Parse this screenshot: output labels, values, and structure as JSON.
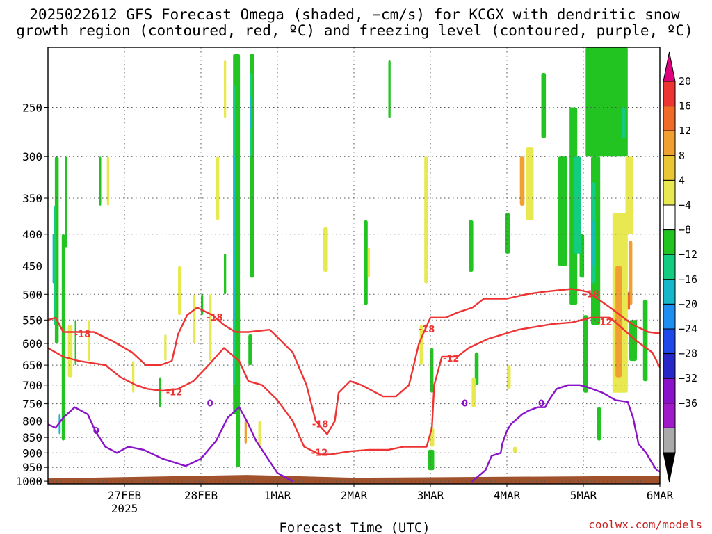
{
  "title": {
    "line1": "2025022612 GFS Forecast Omega (shaded, −cm/s) for KCGX with dendritic snow",
    "line2": "growth region (contoured, red, ºC) and freezing level (contoured, purple, ºC)"
  },
  "credit": "coolwx.com/models",
  "colors": {
    "dgz_contour": "#ee3333",
    "freezing_contour": "#8a12c8",
    "ground": "#a0522d",
    "grid": "#555555"
  },
  "chart_data": {
    "type": "heatmap",
    "title": "2025022612 GFS Forecast Omega (shaded, −cm/s) for KCGX with dendritic snow growth region (contoured, red, ºC) and freezing level (contoured, purple, ºC)",
    "xlabel": "Forecast Time (UTC)",
    "ylabel": "",
    "x_ticks": [
      {
        "day": 1.0,
        "label": "27FEB",
        "sublabel": "2025"
      },
      {
        "day": 2.0,
        "label": "28FEB",
        "sublabel": ""
      },
      {
        "day": 3.0,
        "label": "1MAR",
        "sublabel": ""
      },
      {
        "day": 4.0,
        "label": "2MAR",
        "sublabel": ""
      },
      {
        "day": 5.0,
        "label": "3MAR",
        "sublabel": ""
      },
      {
        "day": 6.0,
        "label": "4MAR",
        "sublabel": ""
      },
      {
        "day": 7.0,
        "label": "5MAR",
        "sublabel": ""
      },
      {
        "day": 8.0,
        "label": "6MAR",
        "sublabel": ""
      }
    ],
    "xlim_days": [
      0.0,
      8.0
    ],
    "pressure_ticks": [
      250,
      300,
      350,
      400,
      450,
      500,
      550,
      600,
      650,
      700,
      750,
      800,
      850,
      900,
      950,
      1000
    ],
    "ylim_hPa": [
      1010,
      200
    ],
    "y_scale": "log-pressure",
    "grid": true,
    "colorbar": {
      "levels": [
        "20",
        "16",
        "12",
        "8",
        "4",
        "−4",
        "−8",
        "−12",
        "−16",
        "−20",
        "−24",
        "−28",
        "−32",
        "−36"
      ],
      "colors": [
        "#e0007e",
        "#ee3333",
        "#f06a28",
        "#f0a030",
        "#e8c634",
        "#e8e850",
        "#ffffff",
        "#22c422",
        "#14cc80",
        "#14b8c8",
        "#1e8ef0",
        "#1e48e8",
        "#2828c8",
        "#8a12c8",
        "#a01ac8",
        "#aaaaaa",
        "#000000"
      ]
    },
    "shading": [
      {
        "name": "green",
        "color": "#22c422",
        "blobs": [
          [
            0.09,
            300,
            0.05,
            600
          ],
          [
            0.18,
            400,
            0.04,
            860
          ],
          [
            0.22,
            300,
            0.03,
            420
          ],
          [
            0.35,
            550,
            0.02,
            650
          ],
          [
            0.67,
            300,
            0.025,
            360
          ],
          [
            1.45,
            680,
            0.03,
            760
          ],
          [
            2.0,
            500,
            0.03,
            540
          ],
          [
            2.1,
            520,
            0.02,
            560
          ],
          [
            2.3,
            430,
            0.03,
            500
          ],
          [
            2.42,
            205,
            0.09,
            780
          ],
          [
            2.46,
            520,
            0.05,
            950
          ],
          [
            2.64,
            205,
            0.06,
            470
          ],
          [
            2.62,
            580,
            0.05,
            650
          ],
          [
            4.13,
            380,
            0.05,
            520
          ],
          [
            4.45,
            210,
            0.03,
            260
          ],
          [
            5.0,
            610,
            0.04,
            720
          ],
          [
            4.97,
            890,
            0.08,
            960
          ],
          [
            5.5,
            380,
            0.06,
            460
          ],
          [
            5.58,
            620,
            0.05,
            700
          ],
          [
            5.98,
            370,
            0.06,
            430
          ],
          [
            6.45,
            220,
            0.06,
            280
          ],
          [
            6.67,
            300,
            0.12,
            450
          ],
          [
            6.82,
            250,
            0.1,
            520
          ],
          [
            6.95,
            400,
            0.06,
            470
          ],
          [
            7.03,
            200,
            0.55,
            300
          ],
          [
            7.1,
            300,
            0.12,
            560
          ],
          [
            7.0,
            540,
            0.06,
            720
          ],
          [
            7.18,
            760,
            0.05,
            860
          ],
          [
            7.6,
            550,
            0.1,
            640
          ],
          [
            7.78,
            510,
            0.06,
            690
          ]
        ]
      },
      {
        "name": "teal",
        "color": "#14cc80",
        "blobs": [
          [
            0.08,
            360,
            0.02,
            560
          ],
          [
            2.42,
            230,
            0.03,
            700
          ],
          [
            2.64,
            220,
            0.03,
            300
          ],
          [
            6.87,
            300,
            0.1,
            430
          ],
          [
            7.1,
            330,
            0.06,
            480
          ],
          [
            7.5,
            250,
            0.05,
            280
          ]
        ]
      },
      {
        "name": "cyan",
        "color": "#14b8c8",
        "blobs": [
          [
            0.06,
            400,
            0.015,
            480
          ],
          [
            0.14,
            780,
            0.025,
            840
          ],
          [
            2.43,
            300,
            0.02,
            550
          ],
          [
            2.64,
            240,
            0.02,
            270
          ],
          [
            7.12,
            380,
            0.03,
            450
          ]
        ]
      },
      {
        "name": "yellow",
        "color": "#e8e850",
        "blobs": [
          [
            0.26,
            560,
            0.06,
            680
          ],
          [
            0.52,
            550,
            0.03,
            640
          ],
          [
            0.77,
            300,
            0.03,
            360
          ],
          [
            1.1,
            640,
            0.03,
            720
          ],
          [
            1.52,
            580,
            0.03,
            640
          ],
          [
            1.7,
            450,
            0.04,
            540
          ],
          [
            1.9,
            500,
            0.03,
            600
          ],
          [
            2.1,
            500,
            0.04,
            640
          ],
          [
            2.2,
            300,
            0.04,
            380
          ],
          [
            2.3,
            210,
            0.03,
            260
          ],
          [
            2.75,
            800,
            0.04,
            880
          ],
          [
            3.6,
            390,
            0.06,
            460
          ],
          [
            4.18,
            420,
            0.03,
            470
          ],
          [
            4.86,
            560,
            0.04,
            650
          ],
          [
            4.92,
            300,
            0.05,
            480
          ],
          [
            5.0,
            820,
            0.05,
            880
          ],
          [
            5.54,
            680,
            0.05,
            760
          ],
          [
            6.0,
            650,
            0.05,
            710
          ],
          [
            6.08,
            880,
            0.05,
            900
          ],
          [
            6.25,
            290,
            0.1,
            380
          ],
          [
            7.38,
            370,
            0.2,
            720
          ],
          [
            7.55,
            300,
            0.1,
            400
          ]
        ]
      },
      {
        "name": "orange",
        "color": "#f0a030",
        "blobs": [
          [
            2.57,
            800,
            0.03,
            870
          ],
          [
            6.17,
            300,
            0.06,
            360
          ],
          [
            7.42,
            450,
            0.08,
            680
          ],
          [
            7.59,
            410,
            0.05,
            520
          ]
        ]
      },
      {
        "name": "dark-orange",
        "color": "#f06a28",
        "blobs": [
          [
            7.58,
            495,
            0.03,
            530
          ]
        ]
      }
    ],
    "series": [
      {
        "name": "-18",
        "kind": "dendritic growth contour",
        "color": "#ee3333",
        "label_positions": [
          [
            0.45,
            580
          ],
          [
            2.18,
            545
          ],
          [
            3.56,
            810
          ],
          [
            4.95,
            570
          ],
          [
            7.1,
            500
          ]
        ],
        "points": [
          [
            0.0,
            550
          ],
          [
            0.1,
            545
          ],
          [
            0.2,
            575
          ],
          [
            0.35,
            575
          ],
          [
            0.6,
            575
          ],
          [
            0.85,
            595
          ],
          [
            1.1,
            620
          ],
          [
            1.28,
            650
          ],
          [
            1.47,
            650
          ],
          [
            1.62,
            640
          ],
          [
            1.7,
            580
          ],
          [
            1.82,
            540
          ],
          [
            1.95,
            525
          ],
          [
            2.15,
            540
          ],
          [
            2.3,
            560
          ],
          [
            2.45,
            575
          ],
          [
            2.62,
            575
          ],
          [
            2.9,
            570
          ],
          [
            3.2,
            620
          ],
          [
            3.38,
            700
          ],
          [
            3.5,
            800
          ],
          [
            3.65,
            840
          ],
          [
            3.75,
            800
          ],
          [
            3.8,
            720
          ],
          [
            3.95,
            690
          ],
          [
            4.1,
            700
          ],
          [
            4.38,
            730
          ],
          [
            4.55,
            730
          ],
          [
            4.72,
            700
          ],
          [
            4.85,
            600
          ],
          [
            5.0,
            545
          ],
          [
            5.2,
            545
          ],
          [
            5.35,
            535
          ],
          [
            5.55,
            525
          ],
          [
            5.7,
            508
          ],
          [
            6.0,
            508
          ],
          [
            6.25,
            500
          ],
          [
            6.5,
            495
          ],
          [
            6.85,
            490
          ],
          [
            7.05,
            495
          ],
          [
            7.35,
            525
          ],
          [
            7.65,
            560
          ],
          [
            7.85,
            575
          ],
          [
            8.0,
            578
          ]
        ]
      },
      {
        "name": "-12",
        "kind": "dendritic growth contour",
        "color": "#ee3333",
        "label_positions": [
          [
            1.65,
            720
          ],
          [
            3.55,
            900
          ],
          [
            5.27,
            635
          ],
          [
            7.27,
            555
          ]
        ],
        "points": [
          [
            0.0,
            610
          ],
          [
            0.1,
            620
          ],
          [
            0.2,
            630
          ],
          [
            0.4,
            640
          ],
          [
            0.75,
            650
          ],
          [
            0.95,
            680
          ],
          [
            1.15,
            700
          ],
          [
            1.3,
            710
          ],
          [
            1.5,
            715
          ],
          [
            1.7,
            710
          ],
          [
            1.9,
            690
          ],
          [
            2.1,
            650
          ],
          [
            2.3,
            610
          ],
          [
            2.5,
            640
          ],
          [
            2.62,
            690
          ],
          [
            2.8,
            700
          ],
          [
            3.0,
            740
          ],
          [
            3.2,
            800
          ],
          [
            3.35,
            880
          ],
          [
            3.55,
            905
          ],
          [
            3.7,
            905
          ],
          [
            3.95,
            895
          ],
          [
            4.2,
            890
          ],
          [
            4.45,
            890
          ],
          [
            4.65,
            880
          ],
          [
            4.95,
            880
          ],
          [
            5.02,
            820
          ],
          [
            5.05,
            700
          ],
          [
            5.15,
            630
          ],
          [
            5.35,
            630
          ],
          [
            5.5,
            610
          ],
          [
            5.75,
            590
          ],
          [
            6.15,
            570
          ],
          [
            6.6,
            558
          ],
          [
            6.85,
            555
          ],
          [
            7.1,
            545
          ],
          [
            7.35,
            545
          ],
          [
            7.7,
            595
          ],
          [
            7.9,
            620
          ],
          [
            8.0,
            655
          ]
        ]
      },
      {
        "name": "0",
        "kind": "freezing level contour",
        "color": "#8a12c8",
        "label_positions": [
          [
            0.63,
            830
          ],
          [
            2.12,
            750
          ],
          [
            5.45,
            750
          ],
          [
            6.45,
            750
          ]
        ],
        "points": [
          [
            0.0,
            810
          ],
          [
            0.1,
            820
          ],
          [
            0.2,
            790
          ],
          [
            0.35,
            760
          ],
          [
            0.52,
            780
          ],
          [
            0.62,
            830
          ],
          [
            0.75,
            880
          ],
          [
            0.9,
            900
          ],
          [
            1.05,
            880
          ],
          [
            1.25,
            890
          ],
          [
            1.5,
            920
          ],
          [
            1.8,
            945
          ],
          [
            2.0,
            920
          ],
          [
            2.2,
            860
          ],
          [
            2.35,
            790
          ],
          [
            2.5,
            760
          ],
          [
            2.6,
            800
          ],
          [
            2.72,
            860
          ],
          [
            2.85,
            910
          ],
          [
            3.0,
            970
          ],
          [
            3.2,
            1000
          ]
        ]
      },
      {
        "name": "0b",
        "kind": "freezing level contour",
        "color": "#8a12c8",
        "label_positions": [],
        "points": [
          [
            5.55,
            1000
          ],
          [
            5.72,
            960
          ],
          [
            5.8,
            910
          ],
          [
            5.92,
            900
          ],
          [
            5.94,
            870
          ],
          [
            6.0,
            830
          ],
          [
            6.05,
            810
          ],
          [
            6.2,
            780
          ],
          [
            6.28,
            770
          ],
          [
            6.4,
            760
          ],
          [
            6.5,
            760
          ],
          [
            6.55,
            740
          ],
          [
            6.65,
            710
          ],
          [
            6.8,
            700
          ],
          [
            6.95,
            700
          ],
          [
            7.05,
            705
          ],
          [
            7.25,
            720
          ],
          [
            7.42,
            740
          ],
          [
            7.58,
            745
          ],
          [
            7.65,
            790
          ],
          [
            7.72,
            870
          ],
          [
            7.82,
            900
          ],
          [
            7.9,
            935
          ],
          [
            7.96,
            960
          ],
          [
            8.0,
            965
          ]
        ]
      }
    ]
  }
}
